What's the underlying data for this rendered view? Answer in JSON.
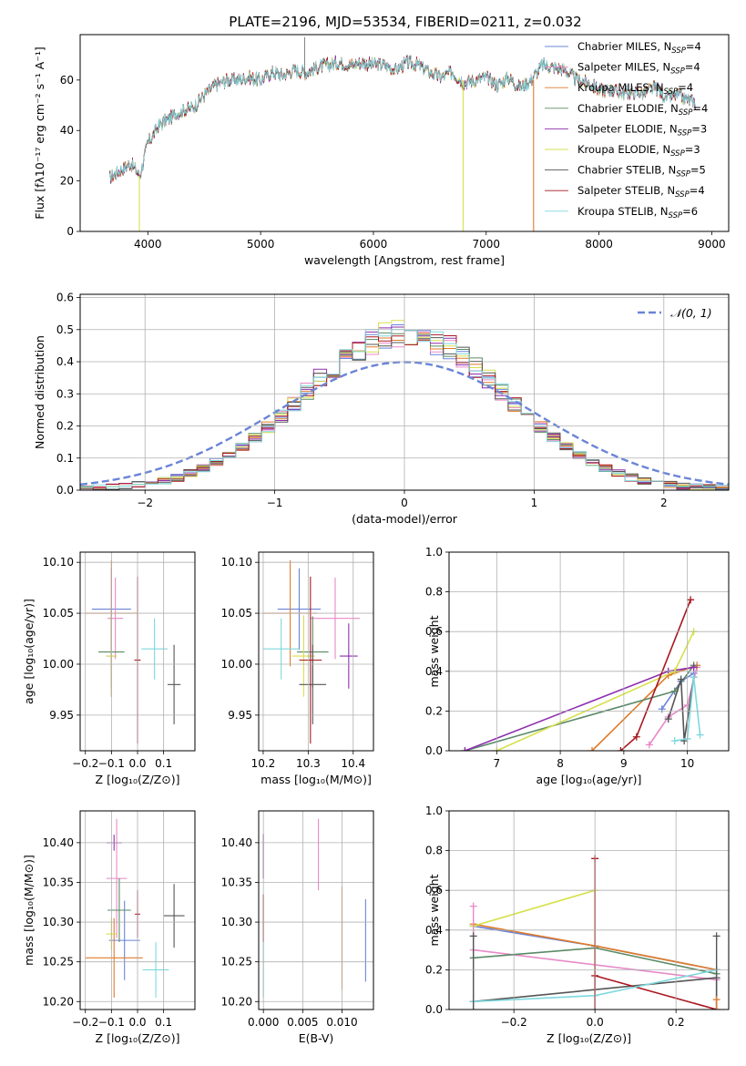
{
  "title": "PLATE=2196, MJD=53534, FIBERID=0211, z=0.032",
  "colors": {
    "c0": "#6a84d8",
    "c1": "#e88ac8",
    "c2": "#e07b2a",
    "c3": "#5a8a66",
    "c4": "#8e2fae",
    "c5": "#d6e04a",
    "c6": "#555555",
    "c7": "#a81820",
    "c8": "#7ed8de"
  },
  "chart_data": [
    {
      "id": "spectrum",
      "type": "line",
      "xlabel": "wavelength [Angstrom, rest frame]",
      "ylabel": "Flux [fλ10⁻¹⁷ erg cm⁻² s⁻¹ A⁻¹]",
      "xlim": [
        3400,
        9150
      ],
      "ylim": [
        0,
        78
      ],
      "xticks": [
        4000,
        5000,
        6000,
        7000,
        8000,
        9000
      ],
      "yticks": [
        0,
        20,
        40,
        60
      ],
      "continuum": {
        "x": [
          3650,
          3750,
          3850,
          3930,
          4000,
          4100,
          4200,
          4300,
          4400,
          4500,
          4600,
          4700,
          4800,
          4900,
          5000,
          5100,
          5200,
          5300,
          5400,
          5500,
          5600,
          5700,
          5800,
          5900,
          6000,
          6100,
          6200,
          6300,
          6400,
          6500,
          6600,
          6700,
          6800,
          6900,
          7000,
          7100,
          7200,
          7300,
          7400,
          7500,
          7600,
          7700,
          7800,
          7900,
          8000,
          8100,
          8200,
          8300,
          8400,
          8500,
          8600,
          8700,
          8800,
          8850
        ],
        "y": [
          21,
          24,
          27,
          22,
          35,
          42,
          45,
          48,
          49,
          54,
          58,
          60,
          60,
          61,
          60,
          63,
          62,
          64,
          63,
          65,
          66,
          67,
          66,
          67,
          66,
          66,
          64,
          67,
          66,
          63,
          61,
          63,
          59,
          60,
          61,
          58,
          61,
          57,
          60,
          66,
          65,
          64,
          60,
          59,
          56,
          56,
          55,
          55,
          55,
          57,
          53,
          54,
          52,
          51
        ]
      },
      "legend": [
        {
          "label": "Chabrier MILES, N",
          "sub": "SSP",
          "n": "=4",
          "color": "c0"
        },
        {
          "label": "Salpeter MILES, N",
          "sub": "SSP",
          "n": "=4",
          "color": "c1"
        },
        {
          "label": "Kroupa MILES, N",
          "sub": "SSP",
          "n": "=4",
          "color": "c2"
        },
        {
          "label": "Chabrier ELODIE, N",
          "sub": "SSP",
          "n": "=4",
          "color": "c3"
        },
        {
          "label": "Salpeter ELODIE, N",
          "sub": "SSP",
          "n": "=3",
          "color": "c4"
        },
        {
          "label": "Kroupa ELODIE, N",
          "sub": "SSP",
          "n": "=3",
          "color": "c5"
        },
        {
          "label": "Chabrier STELIB, N",
          "sub": "SSP",
          "n": "=5",
          "color": "c6"
        },
        {
          "label": "Salpeter STELIB, N",
          "sub": "SSP",
          "n": "=4",
          "color": "c7"
        },
        {
          "label": "Kroupa STELIB, N",
          "sub": "SSP",
          "n": "=6",
          "color": "c8"
        }
      ],
      "legend_placement": "top-right"
    },
    {
      "id": "residuals",
      "type": "line",
      "xlabel": "(data-model)/error",
      "ylabel": "Normed distribution",
      "xlim": [
        -2.5,
        2.5
      ],
      "ylim": [
        0,
        0.61
      ],
      "xticks": [
        -2,
        -1,
        0,
        1,
        2
      ],
      "yticks": [
        0.0,
        0.1,
        0.2,
        0.3,
        0.4,
        0.5,
        0.6
      ],
      "grid": true,
      "histogram_bin_width": 0.1,
      "gaussian": {
        "mean": 0,
        "sigma": 1,
        "color": "c0",
        "label": "𝒩(0, 1)"
      },
      "legend_placement": "top-right"
    },
    {
      "id": "age-vs-Z",
      "type": "scatter",
      "xlabel": "Z [log₁₀(Z/Z⊙)]",
      "ylabel": "age  [log₁₀(age/yr)]",
      "xlim": [
        -0.22,
        0.22
      ],
      "ylim": [
        9.915,
        10.11
      ],
      "xticks": [
        -0.2,
        -0.1,
        0.0,
        0.1
      ],
      "yticks": [
        9.95,
        10.0,
        10.05,
        10.1
      ],
      "grid": true,
      "points": [
        {
          "x": -0.1,
          "xerr": 0.075,
          "y": 10.054,
          "yerr": 0.04,
          "color": "c0"
        },
        {
          "x": -0.085,
          "xerr": 0.03,
          "y": 10.045,
          "yerr": 0.04,
          "color": "c1"
        },
        {
          "x": -0.1,
          "xerr": 0.1,
          "y": 10.05,
          "yerr": 0.052,
          "color": "c2"
        },
        {
          "x": -0.1,
          "xerr": 0.05,
          "y": 10.012,
          "yerr": 0.035,
          "color": "c3"
        },
        {
          "x": -0.1,
          "xerr": 0.02,
          "y": 10.008,
          "yerr": 0.04,
          "color": "c4"
        },
        {
          "x": -0.1,
          "xerr": 0.02,
          "y": 10.008,
          "yerr": 0.04,
          "color": "c5"
        },
        {
          "x": 0.14,
          "xerr": 0.025,
          "y": 9.98,
          "yerr": 0.039,
          "color": "c6"
        },
        {
          "x": 0.0,
          "xerr": 0.012,
          "y": 10.004,
          "yerr": 0.082,
          "color": "c7"
        },
        {
          "x": 0.065,
          "xerr": 0.05,
          "y": 10.015,
          "yerr": 0.03,
          "color": "c8"
        }
      ]
    },
    {
      "id": "age-vs-mass",
      "type": "scatter",
      "xlabel": "mass [log₁₀(M/M⊙)]",
      "ylabel": "",
      "xlim": [
        10.19,
        10.445
      ],
      "ylim": [
        9.915,
        10.11
      ],
      "xticks": [
        10.2,
        10.3,
        10.4
      ],
      "yticks": [
        9.95,
        10.0,
        10.05,
        10.1
      ],
      "grid": true,
      "points": [
        {
          "x": 10.28,
          "xerr": 0.048,
          "y": 10.054,
          "yerr": 0.04,
          "color": "c0"
        },
        {
          "x": 10.36,
          "xerr": 0.055,
          "y": 10.045,
          "yerr": 0.04,
          "color": "c1"
        },
        {
          "x": 10.26,
          "xerr": 0.06,
          "y": 10.05,
          "yerr": 0.052,
          "color": "c2"
        },
        {
          "x": 10.31,
          "xerr": 0.035,
          "y": 10.012,
          "yerr": 0.035,
          "color": "c3"
        },
        {
          "x": 10.39,
          "xerr": 0.02,
          "y": 10.008,
          "yerr": 0.032,
          "color": "c4"
        },
        {
          "x": 10.29,
          "xerr": 0.025,
          "y": 10.008,
          "yerr": 0.04,
          "color": "c5"
        },
        {
          "x": 10.31,
          "xerr": 0.03,
          "y": 9.98,
          "yerr": 0.039,
          "color": "c6"
        },
        {
          "x": 10.305,
          "xerr": 0.025,
          "y": 10.004,
          "yerr": 0.082,
          "color": "c7"
        },
        {
          "x": 10.24,
          "xerr": 0.04,
          "y": 10.015,
          "yerr": 0.03,
          "color": "c8"
        }
      ]
    },
    {
      "id": "weight-vs-age",
      "type": "line",
      "xlabel": "age  [log₁₀(age/yr)]",
      "ylabel": "mass weight",
      "xlim": [
        6.25,
        10.65
      ],
      "ylim": [
        0,
        1.0
      ],
      "xticks": [
        7,
        8,
        9,
        10
      ],
      "yticks": [
        0.0,
        0.2,
        0.4,
        0.6,
        0.8,
        1.0
      ],
      "grid": true,
      "series": [
        {
          "color": "c0",
          "x": [
            9.6,
            9.9,
            10.1
          ],
          "y": [
            0.21,
            0.35,
            0.39
          ]
        },
        {
          "color": "c1",
          "x": [
            9.4,
            9.7,
            10.0,
            10.15
          ],
          "y": [
            0.03,
            0.17,
            0.23,
            0.42
          ]
        },
        {
          "color": "c2",
          "x": [
            8.5,
            9.7,
            10.15
          ],
          "y": [
            0.0,
            0.38,
            0.43
          ]
        },
        {
          "color": "c3",
          "x": [
            6.5,
            9.8,
            10.1
          ],
          "y": [
            0.0,
            0.3,
            0.43
          ]
        },
        {
          "color": "c4",
          "x": [
            6.5,
            9.7,
            10.1
          ],
          "y": [
            0.0,
            0.4,
            0.42
          ]
        },
        {
          "color": "c5",
          "x": [
            7.0,
            9.8,
            10.1
          ],
          "y": [
            0.0,
            0.4,
            0.6
          ]
        },
        {
          "color": "c6",
          "x": [
            9.7,
            9.9,
            9.95,
            10.1
          ],
          "y": [
            0.16,
            0.36,
            0.05,
            0.37
          ]
        },
        {
          "color": "c7",
          "x": [
            8.95,
            9.2,
            10.05
          ],
          "y": [
            0.0,
            0.07,
            0.76
          ]
        },
        {
          "color": "c8",
          "x": [
            9.8,
            10.0,
            10.1,
            10.2
          ],
          "y": [
            0.05,
            0.06,
            0.37,
            0.08
          ]
        }
      ]
    },
    {
      "id": "mass-vs-Z",
      "type": "scatter",
      "xlabel": "Z [log₁₀(Z/Z⊙)]",
      "ylabel": "mass [log₁₀(M/M⊙)]",
      "xlim": [
        -0.22,
        0.22
      ],
      "ylim": [
        10.19,
        10.44
      ],
      "xticks": [
        -0.2,
        -0.1,
        0.0,
        0.1
      ],
      "yticks": [
        10.2,
        10.25,
        10.3,
        10.35,
        10.4
      ],
      "grid": true,
      "points": [
        {
          "x": -0.05,
          "xerr": 0.06,
          "y": 10.277,
          "yerr": 0.05,
          "color": "c0"
        },
        {
          "x": -0.08,
          "xerr": 0.04,
          "y": 10.355,
          "yerr": 0.075,
          "color": "c1"
        },
        {
          "x": -0.09,
          "xerr": 0.11,
          "y": 10.255,
          "yerr": 0.05,
          "color": "c2"
        },
        {
          "x": -0.07,
          "xerr": 0.045,
          "y": 10.315,
          "yerr": 0.04,
          "color": "c3"
        },
        {
          "x": -0.09,
          "xerr": 0.03,
          "y": 10.4,
          "yerr": 0.01,
          "color": "c4"
        },
        {
          "x": -0.1,
          "xerr": 0.02,
          "y": 10.285,
          "yerr": 0.02,
          "color": "c5"
        },
        {
          "x": 0.14,
          "xerr": 0.04,
          "y": 10.308,
          "yerr": 0.04,
          "color": "c6"
        },
        {
          "x": 0.0,
          "xerr": 0.01,
          "y": 10.31,
          "yerr": 0.03,
          "color": "c7"
        },
        {
          "x": 0.07,
          "xerr": 0.05,
          "y": 10.24,
          "yerr": 0.035,
          "color": "c8"
        }
      ]
    },
    {
      "id": "mass-vs-EBV",
      "type": "scatter",
      "xlabel": "E(B-V)",
      "ylabel": "",
      "xlim": [
        -0.0006,
        0.014
      ],
      "ylim": [
        10.19,
        10.44
      ],
      "xticks": [
        0.0,
        0.005,
        0.01
      ],
      "yticks": [
        10.2,
        10.25,
        10.3,
        10.35,
        10.4
      ],
      "grid": true,
      "points": [
        {
          "x": 0.013,
          "y": 10.277,
          "yerr": 0.052,
          "color": "c0"
        },
        {
          "x": 0.007,
          "y": 10.385,
          "yerr": 0.045,
          "color": "c1"
        },
        {
          "x": 0.01,
          "y": 10.28,
          "yerr": 0.065,
          "color": "c2"
        },
        {
          "x": 0.0,
          "y": 10.383,
          "yerr": 0.028,
          "color": "c4"
        },
        {
          "x": 0.0,
          "y": 10.305,
          "yerr": 0.03,
          "color": "c7"
        },
        {
          "x": 0.0,
          "y": 10.24,
          "yerr": 0.035,
          "color": "c8"
        }
      ]
    },
    {
      "id": "weight-vs-Z",
      "type": "line",
      "xlabel": "Z [log₁₀(Z/Z⊙)]",
      "ylabel": "mass weight",
      "xlim": [
        -0.36,
        0.33
      ],
      "ylim": [
        0,
        1.0
      ],
      "xticks": [
        -0.2,
        0.0,
        0.2
      ],
      "yticks": [
        0.0,
        0.2,
        0.4,
        0.6,
        0.8,
        1.0
      ],
      "grid": true,
      "series": [
        {
          "color": "c0",
          "x": [
            -0.3,
            0.0,
            0.3
          ],
          "y": [
            0.42,
            0.32,
            0.2
          ]
        },
        {
          "color": "c1",
          "x": [
            -0.3,
            0.3
          ],
          "y": [
            0.3,
            0.15
          ]
        },
        {
          "color": "c2",
          "x": [
            -0.3,
            0.0,
            0.3
          ],
          "y": [
            0.43,
            0.32,
            0.2
          ]
        },
        {
          "color": "c3",
          "x": [
            -0.3,
            0.0,
            0.3
          ],
          "y": [
            0.26,
            0.31,
            0.18
          ]
        },
        {
          "color": "c5",
          "x": [
            -0.3,
            0.0
          ],
          "y": [
            0.42,
            0.6
          ]
        },
        {
          "color": "c6",
          "x": [
            -0.3,
            0.3
          ],
          "y": [
            0.04,
            0.16
          ]
        },
        {
          "color": "c7",
          "x": [
            0.0,
            0.3
          ],
          "y": [
            0.17,
            0.0
          ]
        },
        {
          "color": "c8",
          "x": [
            -0.3,
            0.0,
            0.3
          ],
          "y": [
            0.04,
            0.07,
            0.2
          ]
        }
      ],
      "markers": [
        {
          "color": "c1",
          "x": -0.3,
          "y": 0.52
        },
        {
          "color": "c6",
          "x": -0.3,
          "y": 0.37
        },
        {
          "color": "c7",
          "x": 0.0,
          "y": 0.76
        },
        {
          "color": "c6",
          "x": 0.3,
          "y": 0.37
        },
        {
          "color": "c2",
          "x": 0.3,
          "y": 0.05
        }
      ]
    }
  ]
}
